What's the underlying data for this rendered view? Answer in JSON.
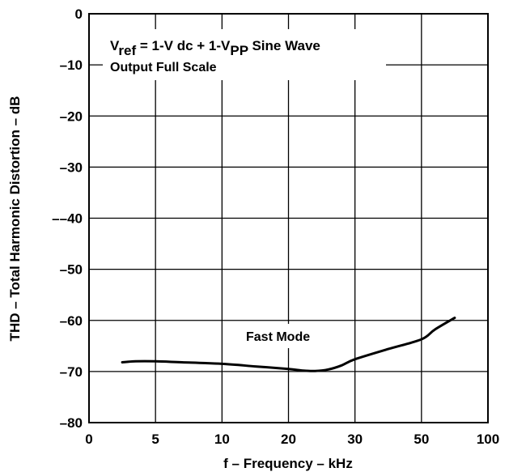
{
  "chart_data": {
    "type": "line",
    "title": "",
    "xlabel": "f – Frequency – kHz",
    "ylabel": "THD – Total Harmonic Distortion – dB",
    "ylim": [
      -80,
      0
    ],
    "y_ticks": [
      0,
      -10,
      -20,
      -30,
      -40,
      -50,
      -60,
      -70,
      -80
    ],
    "y_tick_labels": [
      "0",
      "–10",
      "–20",
      "–30",
      "––40",
      "–50",
      "–60",
      "–70",
      "–80"
    ],
    "x_ticks": [
      0,
      5,
      10,
      20,
      30,
      50,
      100
    ],
    "x_tick_labels": [
      "0",
      "5",
      "10",
      "20",
      "30",
      "50",
      "100"
    ],
    "grid": true,
    "series": [
      {
        "name": "Fast Mode",
        "x": [
          2.5,
          3.5,
          5,
          7,
          10,
          15,
          20,
          22,
          24,
          26,
          28,
          30,
          40,
          50,
          60,
          75
        ],
        "y": [
          -68.2,
          -68.0,
          -68.0,
          -68.2,
          -68.5,
          -69.0,
          -69.5,
          -69.8,
          -69.9,
          -69.6,
          -68.8,
          -67.6,
          -65.6,
          -63.7,
          -61.8,
          -59.5
        ]
      }
    ],
    "annotations": {
      "vref_main": "V",
      "vref_sub1": "ref",
      "vref_mid": " = 1-V dc + 1-V",
      "vref_sub2": "PP",
      "vref_end": " Sine Wave",
      "line2": "Output Full Scale",
      "series_label": "Fast Mode"
    },
    "colors": {
      "line": "#000000",
      "grid": "#000000",
      "background": "#ffffff"
    }
  }
}
